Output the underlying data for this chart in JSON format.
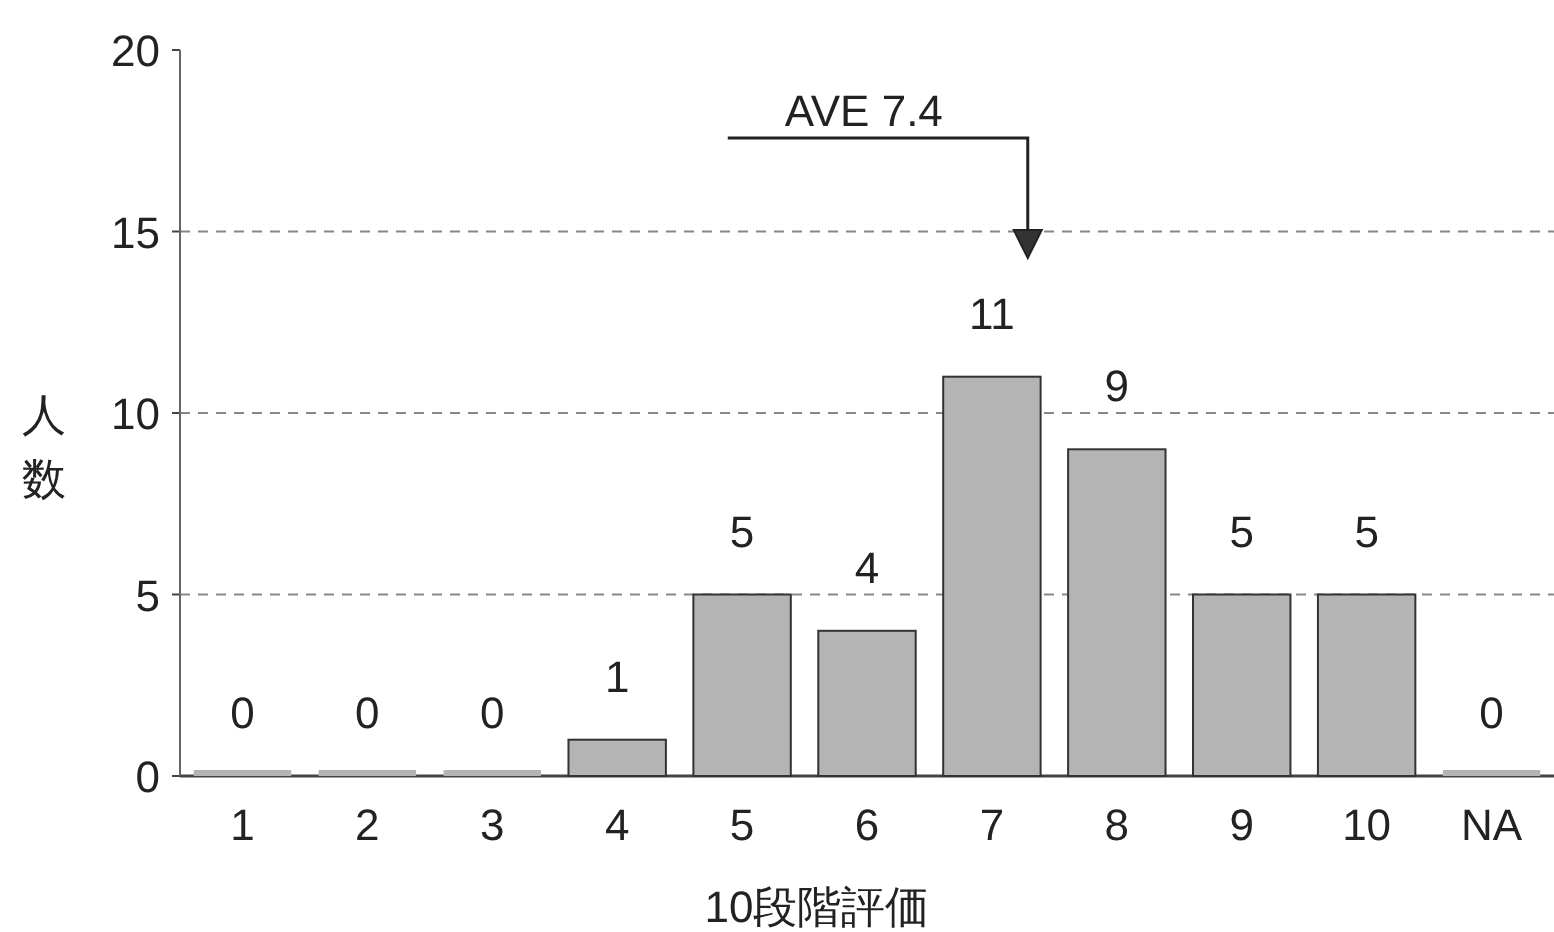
{
  "chart_data": {
    "type": "bar",
    "xlabel": "10段階評価",
    "ylabel": "人数",
    "categories": [
      "1",
      "2",
      "3",
      "4",
      "5",
      "6",
      "7",
      "8",
      "9",
      "10",
      "NA"
    ],
    "values": [
      0,
      0,
      0,
      1,
      5,
      4,
      11,
      9,
      5,
      5,
      0
    ],
    "color": "#b4b4b4",
    "ylim": [
      0,
      20
    ],
    "yticks": [
      0,
      5,
      10,
      15,
      20
    ],
    "grid": "y",
    "data_labels": true,
    "annotations": [
      "AVE 7.4"
    ]
  }
}
